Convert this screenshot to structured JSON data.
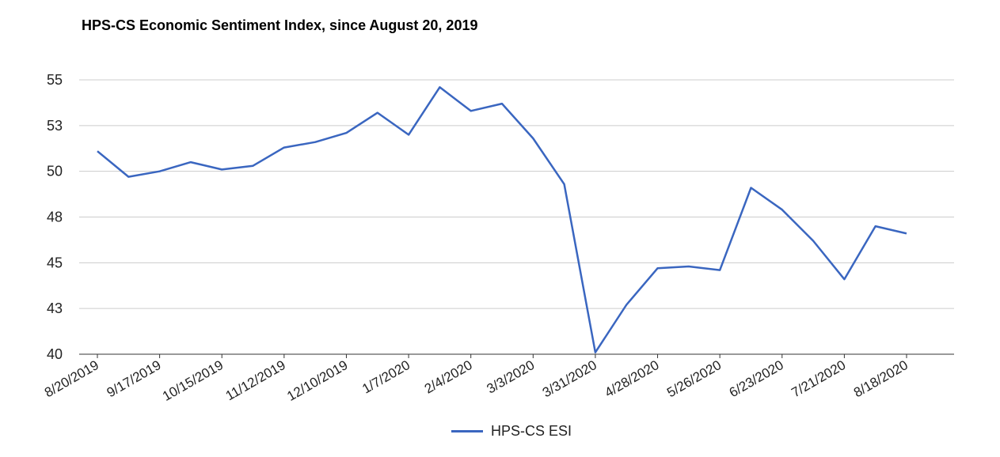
{
  "chart_data": {
    "type": "line",
    "title": "HPS-CS Economic Sentiment Index, since August 20, 2019",
    "xlabel": "",
    "ylabel": "",
    "y_ticks": [
      "55",
      "53",
      "50",
      "48",
      "45",
      "43",
      "40"
    ],
    "ylim": [
      40,
      55
    ],
    "x_tick_labels": [
      "8/20/2019",
      "9/17/2019",
      "10/15/2019",
      "11/12/2019",
      "12/10/2019",
      "1/7/2020",
      "2/4/2020",
      "3/3/2020",
      "3/31/2020",
      "4/28/2020",
      "5/26/2020",
      "6/23/2020",
      "7/21/2020",
      "8/18/2020"
    ],
    "x": [
      "8/20/2019",
      "9/3/2019",
      "9/17/2019",
      "10/1/2019",
      "10/15/2019",
      "10/29/2019",
      "11/12/2019",
      "11/26/2019",
      "12/10/2019",
      "12/24/2019",
      "1/7/2020",
      "1/21/2020",
      "2/4/2020",
      "2/18/2020",
      "3/3/2020",
      "3/17/2020",
      "3/31/2020",
      "4/14/2020",
      "4/28/2020",
      "5/12/2020",
      "5/26/2020",
      "6/9/2020",
      "6/23/2020",
      "7/7/2020",
      "7/21/2020",
      "8/4/2020",
      "8/18/2020"
    ],
    "series": [
      {
        "name": "HPS-CS ESI",
        "color": "#3a66c0",
        "values": [
          51.1,
          49.7,
          50.0,
          50.5,
          50.1,
          50.3,
          51.3,
          51.6,
          52.1,
          53.2,
          52.0,
          54.6,
          53.3,
          53.7,
          51.8,
          49.3,
          40.1,
          42.7,
          44.7,
          44.8,
          44.6,
          49.1,
          47.9,
          46.2,
          44.1,
          47.0,
          46.6
        ]
      }
    ],
    "grid": true,
    "legend": "bottom"
  }
}
